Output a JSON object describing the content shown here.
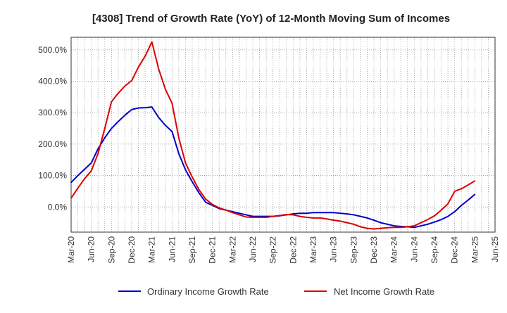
{
  "chart_data": {
    "type": "line",
    "title": "[4308]  Trend of Growth Rate (YoY) of 12-Month Moving Sum of Incomes",
    "xlabel": "",
    "ylabel": "",
    "ylim": [
      -80,
      540
    ],
    "yticks": [
      0,
      100,
      200,
      300,
      400,
      500
    ],
    "ytick_labels": [
      "0.0%",
      "100.0%",
      "200.0%",
      "300.0%",
      "400.0%",
      "500.0%"
    ],
    "x_tick_labels": [
      "Mar-20",
      "Jun-20",
      "Sep-20",
      "Dec-20",
      "Mar-21",
      "Jun-21",
      "Sep-21",
      "Dec-21",
      "Mar-22",
      "Jun-22",
      "Sep-22",
      "Dec-22",
      "Mar-23",
      "Jun-23",
      "Sep-23",
      "Dec-23",
      "Mar-24",
      "Jun-24",
      "Sep-24",
      "Dec-24",
      "Mar-25",
      "Jun-25"
    ],
    "x_range_months": [
      0,
      63
    ],
    "grid": true,
    "legend_position": "bottom",
    "series": [
      {
        "name": "Ordinary Income Growth Rate",
        "color": "#0000cc",
        "x": [
          0,
          1,
          2,
          3,
          4,
          5,
          6,
          7,
          8,
          9,
          10,
          11,
          12,
          13,
          14,
          15,
          16,
          17,
          18,
          19,
          20,
          21,
          22,
          23,
          24,
          25,
          26,
          27,
          28,
          29,
          30,
          31,
          32,
          33,
          34,
          35,
          36,
          37,
          38,
          39,
          40,
          41,
          42,
          43,
          44,
          45,
          46,
          47,
          48,
          49,
          50,
          51,
          52,
          53,
          54,
          55,
          56,
          57,
          58,
          59,
          60
        ],
        "values": [
          78,
          100,
          120,
          140,
          185,
          220,
          250,
          272,
          292,
          310,
          315,
          316,
          318,
          285,
          260,
          240,
          170,
          118,
          80,
          45,
          15,
          5,
          -5,
          -10,
          -15,
          -20,
          -25,
          -30,
          -30,
          -30,
          -30,
          -28,
          -25,
          -22,
          -20,
          -20,
          -18,
          -18,
          -18,
          -18,
          -20,
          -22,
          -25,
          -30,
          -35,
          -42,
          -50,
          -55,
          -60,
          -62,
          -63,
          -65,
          -60,
          -55,
          -48,
          -40,
          -30,
          -15,
          5,
          22,
          40
        ]
      },
      {
        "name": "Net Income Growth Rate",
        "color": "#dd0000",
        "x": [
          0,
          1,
          2,
          3,
          4,
          5,
          6,
          7,
          8,
          9,
          10,
          11,
          12,
          13,
          14,
          15,
          16,
          17,
          18,
          19,
          20,
          21,
          22,
          23,
          24,
          25,
          26,
          27,
          28,
          29,
          30,
          31,
          32,
          33,
          34,
          35,
          36,
          37,
          38,
          39,
          40,
          41,
          42,
          43,
          44,
          45,
          46,
          47,
          48,
          49,
          50,
          51,
          52,
          53,
          54,
          55,
          56,
          57,
          58,
          59,
          60
        ],
        "values": [
          28,
          60,
          90,
          115,
          170,
          250,
          335,
          362,
          385,
          402,
          445,
          480,
          525,
          440,
          375,
          330,
          220,
          140,
          95,
          55,
          25,
          8,
          -3,
          -10,
          -18,
          -25,
          -32,
          -33,
          -33,
          -33,
          -30,
          -27,
          -24,
          -25,
          -30,
          -33,
          -35,
          -35,
          -38,
          -42,
          -45,
          -50,
          -55,
          -63,
          -68,
          -70,
          -68,
          -66,
          -65,
          -65,
          -63,
          -60,
          -50,
          -40,
          -28,
          -10,
          10,
          50,
          58,
          70,
          83
        ]
      }
    ]
  }
}
